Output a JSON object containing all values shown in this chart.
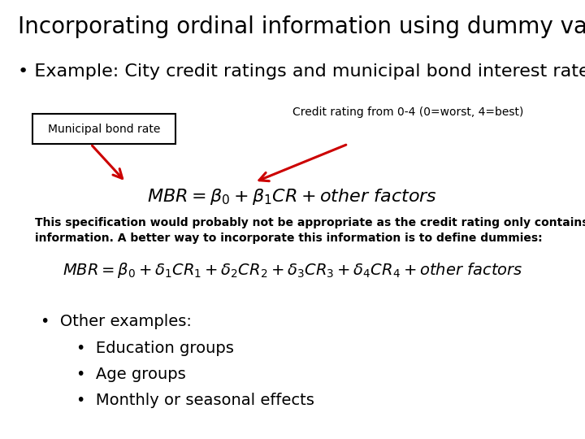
{
  "title": "Incorporating ordinal information using dummy variables",
  "title_fontsize": 20,
  "bg_color": "#ffffff",
  "bullet1": "Example: City credit ratings and municipal bond interest rates",
  "bullet1_fontsize": 16,
  "label_mbr": "Municipal bond rate",
  "label_cr": "Credit rating from 0-4 (0=worst, 4=best)",
  "label_fontsize": 10,
  "eq1_fontsize": 16,
  "spec_text_line1": "This specification would probably not be appropriate as the credit rating only contains ordinal",
  "spec_text_line2": "information. A better way to incorporate this information is to define dummies:",
  "spec_fontsize": 10,
  "eq2_fontsize": 14,
  "bullet2": "Other examples:",
  "bullet2_fontsize": 14,
  "sub_bullets": [
    "Education groups",
    "Age groups",
    "Monthly or seasonal effects"
  ],
  "sub_bullet_fontsize": 14,
  "arrow_color": "#cc0000",
  "box_color": "#000000",
  "text_color": "#000000"
}
